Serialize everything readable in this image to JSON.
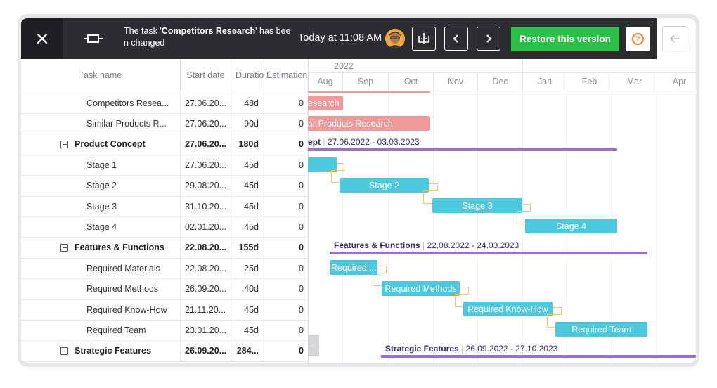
{
  "topbar": {
    "message_prefix": "The task '",
    "message_task": "Competitors Research",
    "message_suffix": "' has been changed",
    "timestamp": "Today at 11:08 AM",
    "restore_label": "Restore this version",
    "help_symbol": "?"
  },
  "grid": {
    "columns": [
      "Task name",
      "Start date",
      "Duration",
      "Estimation"
    ],
    "rows": [
      {
        "name": "Competitors Resea...",
        "start": "27.06.20...",
        "duration": "48d",
        "estimation": "0",
        "summary": false
      },
      {
        "name": "Similar Products R...",
        "start": "27.06.20...",
        "duration": "90d",
        "estimation": "0",
        "summary": false
      },
      {
        "name": "Product Concept",
        "start": "27.06.20...",
        "duration": "180d",
        "estimation": "0",
        "summary": true
      },
      {
        "name": "Stage 1",
        "start": "27.06.20...",
        "duration": "45d",
        "estimation": "0",
        "summary": false
      },
      {
        "name": "Stage 2",
        "start": "29.08.20...",
        "duration": "45d",
        "estimation": "0",
        "summary": false
      },
      {
        "name": "Stage 3",
        "start": "31.10.20...",
        "duration": "45d",
        "estimation": "0",
        "summary": false
      },
      {
        "name": "Stage 4",
        "start": "02.01.20...",
        "duration": "45d",
        "estimation": "0",
        "summary": false
      },
      {
        "name": "Features & Functions",
        "start": "22.08.20...",
        "duration": "155d",
        "estimation": "0",
        "summary": true
      },
      {
        "name": "Required Materials",
        "start": "22.08.20...",
        "duration": "25d",
        "estimation": "0",
        "summary": false
      },
      {
        "name": "Required Methods",
        "start": "26.09.20...",
        "duration": "40d",
        "estimation": "0",
        "summary": false
      },
      {
        "name": "Required Know-How",
        "start": "21.11.20...",
        "duration": "45d",
        "estimation": "0",
        "summary": false
      },
      {
        "name": "Required Team",
        "start": "23.01.20...",
        "duration": "45d",
        "estimation": "0",
        "summary": false
      },
      {
        "name": "Strategic Features",
        "start": "26.09.20...",
        "duration": "284...",
        "estimation": "0",
        "summary": true
      }
    ]
  },
  "timeline": {
    "year": "2022",
    "months": [
      "Aug",
      "Sep",
      "Oct",
      "Nov",
      "Dec",
      "Jan",
      "Feb",
      "Mar",
      "Apr"
    ],
    "bars": {
      "competitors": "esearch",
      "similar": "ar Products Research",
      "stage1": "",
      "stage2": "Stage 2",
      "stage3": "Stage 3",
      "stage4": "Stage 4",
      "materials": "Required ...",
      "methods": "Required Methods",
      "knowhow": "Required Know-How",
      "team": "Required Team"
    },
    "summaries": {
      "concept_name": "ept",
      "concept_range": "27.06.2022 - 03.03.2023",
      "features_name": "Features & Functions",
      "features_range": "22.08.2022 - 24.03.2023",
      "strategic_name": "Strategic Features",
      "strategic_range": "26.09.2022 - 27.10.2023"
    }
  },
  "colors": {
    "topbar": "#2c2d31",
    "restore": "#2ebf4b",
    "task_bar": "#4dc8dc",
    "research_bar": "#ef9a9a",
    "summary_line": "#9b6fd0",
    "link": "#f5c46a"
  }
}
